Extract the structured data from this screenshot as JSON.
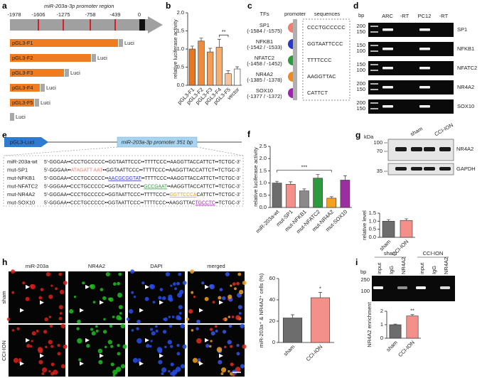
{
  "panel_a": {
    "label": "a",
    "title": "miR-203a-3p promoter region",
    "positions": [
      -1978,
      -1606,
      -1275,
      -758,
      -439,
      0
    ],
    "constructs": [
      "pGL3-F1",
      "pGL3-F2",
      "pGL3-F3",
      "pGL3-F4",
      "pGL3-F5"
    ],
    "luci": "Luci"
  },
  "panel_c": {
    "label": "c",
    "headers": [
      "TFs",
      "promoter",
      "sequences"
    ],
    "tfs": [
      {
        "name": "SP1",
        "range": "(-1584 / -1575)",
        "sequence": "CCCTGCCCCC",
        "color": "#f08070"
      },
      {
        "name": "NFKB1",
        "range": "(-1542 / -1533)",
        "sequence": "GGTAATTCCC",
        "color": "#2838c8"
      },
      {
        "name": "NFATC2",
        "range": "(-1458 / -1452)",
        "sequence": "TTTTCCC",
        "color": "#2e9a3e"
      },
      {
        "name": "NR4A2",
        "range": "(-1385 / -1378)",
        "sequence": "AAGGTTAC",
        "color": "#f08a1e"
      },
      {
        "name": "SOX10",
        "range": "(-1377 / -1372)",
        "sequence": "CATTCT",
        "color": "#a020b0"
      }
    ]
  },
  "panel_d": {
    "label": "d",
    "unit": "bp",
    "lanes": [
      "ARC",
      "-RT",
      "PC12",
      "-RT"
    ],
    "rows": [
      {
        "name": "SP1",
        "markers": [
          200,
          150
        ]
      },
      {
        "name": "NFKB1",
        "markers": [
          150,
          100
        ]
      },
      {
        "name": "NFATC2",
        "markers": [
          150,
          100
        ]
      },
      {
        "name": "NR4A2",
        "markers": [
          200,
          150
        ]
      },
      {
        "name": "SOX10",
        "markers": [
          200,
          150
        ]
      }
    ]
  },
  "panel_e": {
    "label": "e",
    "vector": "pGL3-Luci",
    "insert": "miR-203a-3p promoter 351 bp",
    "rows": [
      {
        "name": "miR-203a-wt",
        "parts": [
          "5'-GGGAA••CCCTGCCCCC••GGTAATTCCC••TTTTCCC••AAGGTTACCATTCT••TCTGC-3'"
        ]
      },
      {
        "name": "mut-SP1",
        "parts": [
          "5'-GGGAA••",
          {
            "text": "ATAGATT AAT",
            "color": "#f08070"
          },
          "••GGTAATTCCC••TTTTCCC••AAGGTTACCATTCT••TCTGC-3'"
        ]
      },
      {
        "name": "mut-NFKB1",
        "parts": [
          "5'-GGGAA••CCCTGCCCCC••",
          {
            "text": "AACGCGGTAT",
            "color": "#2838c8"
          },
          "••TTTTCCC••AAGGTTACCATTCT••TCTGC-3'"
        ]
      },
      {
        "name": "mut-NFATC2",
        "parts": [
          "5'-GGGAA••CCCTGCCCCC••GGTAATTCCC••",
          {
            "text": "GCCGAAT",
            "color": "#2e9a3e"
          },
          "••AAGGTTACCATTCT••TCTGC-3'"
        ]
      },
      {
        "name": "mut-NR4A2",
        "parts": [
          "5'-GGGAA••CCCTGCCCCC••GGTAATTCCC••TTTTCCC••",
          {
            "text": "GGTTCCCA",
            "color": "#f0a010"
          },
          "CATTCT••TCTGC-3'"
        ]
      },
      {
        "name": "mut-SOX10",
        "parts": [
          "5'-GGGAA••CCCTGCCCCC••GGTAATTCCC••TTTTCCC••AAGGTTAC",
          {
            "text": "TGCCTC",
            "color": "#a020b0"
          },
          "••TCTGC-3'"
        ]
      }
    ]
  },
  "panel_g": {
    "label": "g",
    "unit": "kDa",
    "markers": [
      100,
      70,
      35
    ],
    "lanes": [
      "sham",
      "CCI-ION"
    ],
    "proteins": [
      "NR4A2",
      "GAPDH"
    ]
  },
  "panel_h": {
    "label": "h",
    "channels": [
      "miR-203a",
      "NR4A2",
      "DAPI",
      "merged"
    ],
    "channel_colors": [
      "#e0201a",
      "#20b020",
      "#2848e0",
      "#e07020"
    ],
    "groups": [
      "sham",
      "CCI-ION"
    ]
  },
  "panel_i": {
    "label": "i",
    "unit": "bp",
    "markers": [
      250,
      100
    ],
    "groups": [
      "sham",
      "CCI-ION"
    ],
    "lanes": [
      "input",
      "IgG",
      "NR4A2",
      "input",
      "IgG",
      "NR4A2"
    ]
  },
  "chart_data": [
    {
      "type": "bar",
      "label": "b",
      "ylabel": "relative luciferase activity",
      "categories": [
        "pGL3-F1",
        "pGL3-F2",
        "pGL3-F3",
        "pGL3-F4",
        "pGL3-F5",
        "vector"
      ],
      "values": [
        1.0,
        1.22,
        0.92,
        1.05,
        0.32,
        0.45
      ],
      "errors": [
        0.08,
        0.08,
        0.1,
        0.22,
        0.08,
        0.06
      ],
      "colors": [
        "#e87722",
        "#f08a3c",
        "#f39c55",
        "#f5ad70",
        "#f8c39a",
        "#ffffff"
      ],
      "ylim": [
        0,
        2
      ],
      "yticks": [
        {
          "value": 0,
          "label": "0.0"
        },
        0.5,
        {
          "value": 1,
          "label": "1.0"
        },
        1.5,
        {
          "value": 2,
          "label": "2.0"
        }
      ],
      "annotation": "**"
    },
    {
      "type": "bar",
      "label": "f",
      "ylabel": "relative luciferase activity",
      "categories": [
        "miR-203a-wt",
        "mut-SP1",
        "mut-NFKB1",
        "mut-NFATC2",
        "mut-NR4A2",
        "mut-SOX10"
      ],
      "values": [
        1.0,
        0.95,
        0.68,
        1.2,
        0.38,
        1.12
      ],
      "errors": [
        0.07,
        0.1,
        0.08,
        0.15,
        0.06,
        0.18
      ],
      "colors": [
        "#6d6d6d",
        "#f4908a",
        "#8a8a8a",
        "#2e9a3e",
        "#f5a11e",
        "#9b2fa0"
      ],
      "ylim": [
        0,
        2.5
      ],
      "yticks": [
        {
          "value": 0,
          "label": "0.0"
        },
        0.5,
        {
          "value": 1,
          "label": "1.0"
        },
        1.5,
        {
          "value": 2,
          "label": "2.0"
        },
        2.5
      ],
      "annotation": "***"
    },
    {
      "type": "bar",
      "ylabel": "relative level",
      "categories": [
        "sham",
        "CCI-ION"
      ],
      "values": [
        1.0,
        1.05
      ],
      "errors": [
        0.1,
        0.1
      ],
      "colors": [
        "#6d6d6d",
        "#f4908a"
      ],
      "ylim": [
        0,
        1.5
      ],
      "yticks": [
        {
          "value": 0,
          "label": "0.0"
        },
        0.5,
        {
          "value": 1,
          "label": "1.0"
        },
        1.5
      ]
    },
    {
      "type": "bar",
      "ylabel": "miR-203a⁺ & NR4A2⁺ cells (%)",
      "categories": [
        "sham",
        "CCI-ION"
      ],
      "values": [
        23,
        42
      ],
      "errors": [
        3,
        5
      ],
      "colors": [
        "#6d6d6d",
        "#f4908a"
      ],
      "ylim": [
        0,
        60
      ],
      "yticks": [
        0,
        20,
        40,
        60
      ],
      "annotation": "*"
    },
    {
      "type": "bar",
      "ylabel": "NR4A2 enrichment",
      "categories": [
        "sham",
        "CCI-ION"
      ],
      "values": [
        1.0,
        1.65
      ],
      "errors": [
        0.05,
        0.1
      ],
      "colors": [
        "#6d6d6d",
        "#f4908a"
      ],
      "ylim": [
        0,
        2
      ],
      "yticks": [
        0,
        1,
        2
      ],
      "annotation": "**"
    }
  ]
}
